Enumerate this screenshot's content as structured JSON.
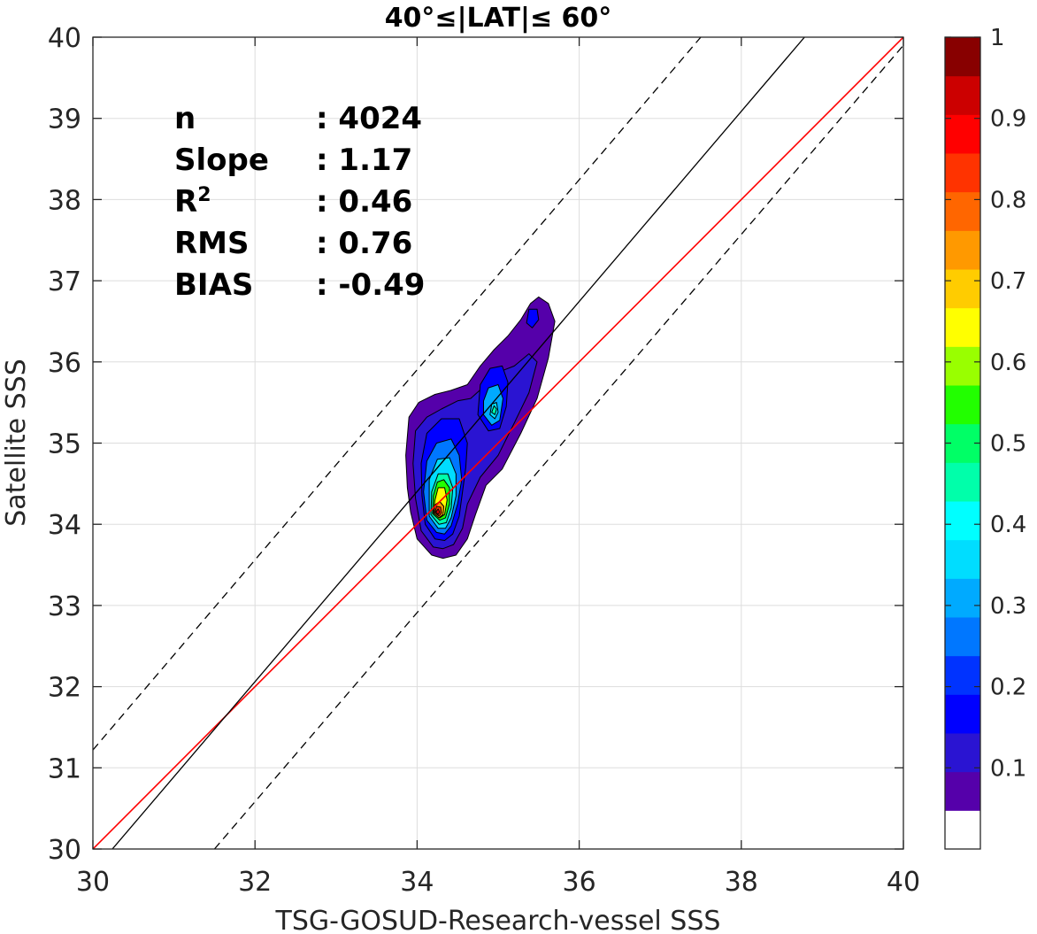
{
  "chart_data": {
    "type": "heatmap",
    "subtype": "filled-contour density with reference lines",
    "title": "40°≤|LAT|≤ 60°",
    "xlabel": "TSG-GOSUD-Research-vessel SSS",
    "ylabel": "Satellite SSS",
    "xlim": [
      30,
      40
    ],
    "ylim": [
      30,
      40
    ],
    "xticks": [
      30,
      32,
      34,
      36,
      38,
      40
    ],
    "yticks": [
      30,
      31,
      32,
      33,
      34,
      35,
      36,
      37,
      38,
      39,
      40
    ],
    "xtick_labels": [
      "30",
      "32",
      "34",
      "36",
      "38",
      "40"
    ],
    "ytick_labels": [
      "30",
      "31",
      "32",
      "33",
      "34",
      "35",
      "36",
      "37",
      "38",
      "39",
      "40"
    ],
    "grid": true,
    "stats": [
      {
        "label": "n",
        "value": ": 4024"
      },
      {
        "label": "Slope",
        "value": ": 1.17"
      },
      {
        "label": "R",
        "sup": "2",
        "value": ": 0.46"
      },
      {
        "label": "RMS",
        "value": ": 0.76"
      },
      {
        "label": "BIAS",
        "value": ": -0.49"
      }
    ],
    "lines": [
      {
        "role": "identity",
        "color": "#ff0000",
        "points": [
          [
            30,
            30
          ],
          [
            40,
            40
          ]
        ]
      },
      {
        "role": "regression",
        "color": "#000000",
        "dash": false,
        "points": [
          [
            30.24,
            30
          ],
          [
            38.78,
            40
          ]
        ]
      },
      {
        "role": "upper-bound",
        "color": "#000000",
        "dash": true,
        "points": [
          [
            30,
            31.22
          ],
          [
            37.5,
            40
          ]
        ]
      },
      {
        "role": "lower-bound",
        "color": "#000000",
        "dash": true,
        "points": [
          [
            31.5,
            30
          ],
          [
            40,
            39.9
          ]
        ]
      }
    ],
    "density_contours": [
      {
        "level": 0.05,
        "polygon": [
          [
            34.0,
            33.82
          ],
          [
            34.18,
            33.62
          ],
          [
            34.32,
            33.58
          ],
          [
            34.48,
            33.62
          ],
          [
            34.62,
            33.82
          ],
          [
            34.72,
            34.12
          ],
          [
            34.85,
            34.48
          ],
          [
            35.05,
            34.68
          ],
          [
            35.28,
            35.12
          ],
          [
            35.48,
            35.55
          ],
          [
            35.62,
            36.05
          ],
          [
            35.7,
            36.5
          ],
          [
            35.62,
            36.72
          ],
          [
            35.5,
            36.8
          ],
          [
            35.4,
            36.72
          ],
          [
            35.28,
            36.52
          ],
          [
            35.12,
            36.32
          ],
          [
            34.95,
            36.15
          ],
          [
            34.78,
            35.95
          ],
          [
            34.62,
            35.72
          ],
          [
            34.42,
            35.65
          ],
          [
            34.22,
            35.6
          ],
          [
            34.02,
            35.5
          ],
          [
            33.9,
            35.32
          ],
          [
            33.86,
            34.85
          ],
          [
            33.88,
            34.45
          ],
          [
            33.92,
            34.15
          ]
        ]
      },
      {
        "level": 0.1,
        "polygon": [
          [
            34.05,
            33.92
          ],
          [
            34.2,
            33.72
          ],
          [
            34.32,
            33.7
          ],
          [
            34.45,
            33.75
          ],
          [
            34.56,
            33.95
          ],
          [
            34.62,
            34.25
          ],
          [
            34.78,
            34.58
          ],
          [
            35.0,
            34.85
          ],
          [
            35.2,
            35.25
          ],
          [
            35.38,
            35.62
          ],
          [
            35.48,
            36.0
          ],
          [
            35.38,
            36.1
          ],
          [
            35.2,
            35.95
          ],
          [
            35.02,
            35.88
          ],
          [
            34.85,
            35.72
          ],
          [
            34.66,
            35.55
          ],
          [
            34.5,
            35.52
          ],
          [
            34.3,
            35.42
          ],
          [
            34.12,
            35.32
          ],
          [
            33.98,
            35.15
          ],
          [
            33.95,
            34.75
          ],
          [
            33.98,
            34.32
          ]
        ]
      },
      {
        "level": 0.15,
        "polygon": [
          [
            34.1,
            34.0
          ],
          [
            34.22,
            33.82
          ],
          [
            34.34,
            33.8
          ],
          [
            34.44,
            33.88
          ],
          [
            34.52,
            34.1
          ],
          [
            34.56,
            34.4
          ],
          [
            34.6,
            34.7
          ],
          [
            34.62,
            35.0
          ],
          [
            34.52,
            35.3
          ],
          [
            34.3,
            35.3
          ],
          [
            34.12,
            35.12
          ],
          [
            34.05,
            34.75
          ],
          [
            34.06,
            34.35
          ]
        ]
      },
      {
        "level": 0.15,
        "polygon": [
          [
            34.75,
            35.35
          ],
          [
            34.88,
            35.15
          ],
          [
            35.02,
            35.18
          ],
          [
            35.1,
            35.45
          ],
          [
            35.12,
            35.75
          ],
          [
            35.05,
            35.95
          ],
          [
            34.9,
            35.92
          ],
          [
            34.78,
            35.72
          ]
        ]
      },
      {
        "level": 0.15,
        "polygon": [
          [
            35.35,
            36.48
          ],
          [
            35.42,
            36.42
          ],
          [
            35.5,
            36.52
          ],
          [
            35.48,
            36.65
          ],
          [
            35.38,
            36.65
          ]
        ]
      },
      {
        "level": 0.25,
        "polygon": [
          [
            34.12,
            34.05
          ],
          [
            34.24,
            33.9
          ],
          [
            34.34,
            33.88
          ],
          [
            34.42,
            33.98
          ],
          [
            34.5,
            34.25
          ],
          [
            34.55,
            34.55
          ],
          [
            34.52,
            34.85
          ],
          [
            34.42,
            35.05
          ],
          [
            34.24,
            35.0
          ],
          [
            34.12,
            34.78
          ],
          [
            34.08,
            34.4
          ]
        ]
      },
      {
        "level": 0.3,
        "polygon": [
          [
            34.82,
            35.35
          ],
          [
            34.92,
            35.22
          ],
          [
            35.02,
            35.28
          ],
          [
            35.06,
            35.55
          ],
          [
            35.0,
            35.72
          ],
          [
            34.88,
            35.68
          ],
          [
            34.82,
            35.52
          ]
        ]
      },
      {
        "level": 0.35,
        "polygon": [
          [
            34.15,
            34.1
          ],
          [
            34.26,
            33.95
          ],
          [
            34.35,
            33.95
          ],
          [
            34.42,
            34.08
          ],
          [
            34.48,
            34.35
          ],
          [
            34.48,
            34.62
          ],
          [
            34.4,
            34.82
          ],
          [
            34.25,
            34.8
          ],
          [
            34.15,
            34.55
          ]
        ]
      },
      {
        "level": 0.45,
        "polygon": [
          [
            34.17,
            34.12
          ],
          [
            34.27,
            34.0
          ],
          [
            34.36,
            34.02
          ],
          [
            34.42,
            34.2
          ],
          [
            34.44,
            34.45
          ],
          [
            34.38,
            34.62
          ],
          [
            34.26,
            34.62
          ],
          [
            34.18,
            34.4
          ]
        ]
      },
      {
        "level": 0.55,
        "polygon": [
          [
            34.19,
            34.13
          ],
          [
            34.28,
            34.05
          ],
          [
            34.35,
            34.08
          ],
          [
            34.4,
            34.25
          ],
          [
            34.4,
            34.45
          ],
          [
            34.33,
            34.55
          ],
          [
            34.25,
            34.52
          ],
          [
            34.2,
            34.35
          ]
        ]
      },
      {
        "level": 0.65,
        "polygon": [
          [
            34.2,
            34.14
          ],
          [
            34.28,
            34.08
          ],
          [
            34.34,
            34.12
          ],
          [
            34.37,
            34.3
          ],
          [
            34.34,
            34.45
          ],
          [
            34.26,
            34.45
          ],
          [
            34.22,
            34.3
          ]
        ]
      },
      {
        "level": 0.75,
        "polygon": [
          [
            34.21,
            34.13
          ],
          [
            34.27,
            34.08
          ],
          [
            34.32,
            34.12
          ],
          [
            34.33,
            34.22
          ],
          [
            34.28,
            34.28
          ],
          [
            34.22,
            34.24
          ]
        ]
      },
      {
        "level": 0.85,
        "polygon": [
          [
            34.22,
            34.14
          ],
          [
            34.27,
            34.1
          ],
          [
            34.3,
            34.14
          ],
          [
            34.29,
            34.21
          ],
          [
            34.24,
            34.22
          ]
        ]
      },
      {
        "level": 0.95,
        "polygon": [
          [
            34.23,
            34.15
          ],
          [
            34.26,
            34.12
          ],
          [
            34.28,
            34.15
          ],
          [
            34.26,
            34.19
          ]
        ]
      },
      {
        "level": 0.35,
        "polygon": [
          [
            34.9,
            35.35
          ],
          [
            34.96,
            35.3
          ],
          [
            35.0,
            35.38
          ],
          [
            34.98,
            35.5
          ],
          [
            34.92,
            35.48
          ]
        ]
      },
      {
        "level": 0.45,
        "polygon": [
          [
            34.92,
            35.38
          ],
          [
            34.96,
            35.35
          ],
          [
            34.98,
            35.42
          ],
          [
            34.95,
            35.46
          ]
        ]
      }
    ],
    "colorbar": {
      "range": [
        0,
        1
      ],
      "ticks": [
        0.1,
        0.2,
        0.3,
        0.4,
        0.5,
        0.6,
        0.7,
        0.8,
        0.9,
        1
      ],
      "tick_labels": [
        "0.1",
        "0.2",
        "0.3",
        "0.4",
        "0.5",
        "0.6",
        "0.7",
        "0.8",
        "0.9",
        "1"
      ],
      "bins": [
        {
          "lo": 0.0,
          "color": "#ffffff"
        },
        {
          "lo": 0.05,
          "color": "#5500aa"
        },
        {
          "lo": 0.1,
          "color": "#2a14d2"
        },
        {
          "lo": 0.15,
          "color": "#0000ff"
        },
        {
          "lo": 0.2,
          "color": "#0033ff"
        },
        {
          "lo": 0.25,
          "color": "#0077ff"
        },
        {
          "lo": 0.3,
          "color": "#00aaff"
        },
        {
          "lo": 0.35,
          "color": "#00ddff"
        },
        {
          "lo": 0.4,
          "color": "#00ffff"
        },
        {
          "lo": 0.45,
          "color": "#00ffaa"
        },
        {
          "lo": 0.5,
          "color": "#00ff66"
        },
        {
          "lo": 0.55,
          "color": "#22ff00"
        },
        {
          "lo": 0.6,
          "color": "#99ff00"
        },
        {
          "lo": 0.65,
          "color": "#ffff00"
        },
        {
          "lo": 0.7,
          "color": "#ffcc00"
        },
        {
          "lo": 0.75,
          "color": "#ff9900"
        },
        {
          "lo": 0.8,
          "color": "#ff6600"
        },
        {
          "lo": 0.85,
          "color": "#ff3300"
        },
        {
          "lo": 0.9,
          "color": "#ff0000"
        },
        {
          "lo": 0.95,
          "color": "#cc0000"
        },
        {
          "lo": 1.0,
          "color": "#880000"
        }
      ]
    }
  }
}
